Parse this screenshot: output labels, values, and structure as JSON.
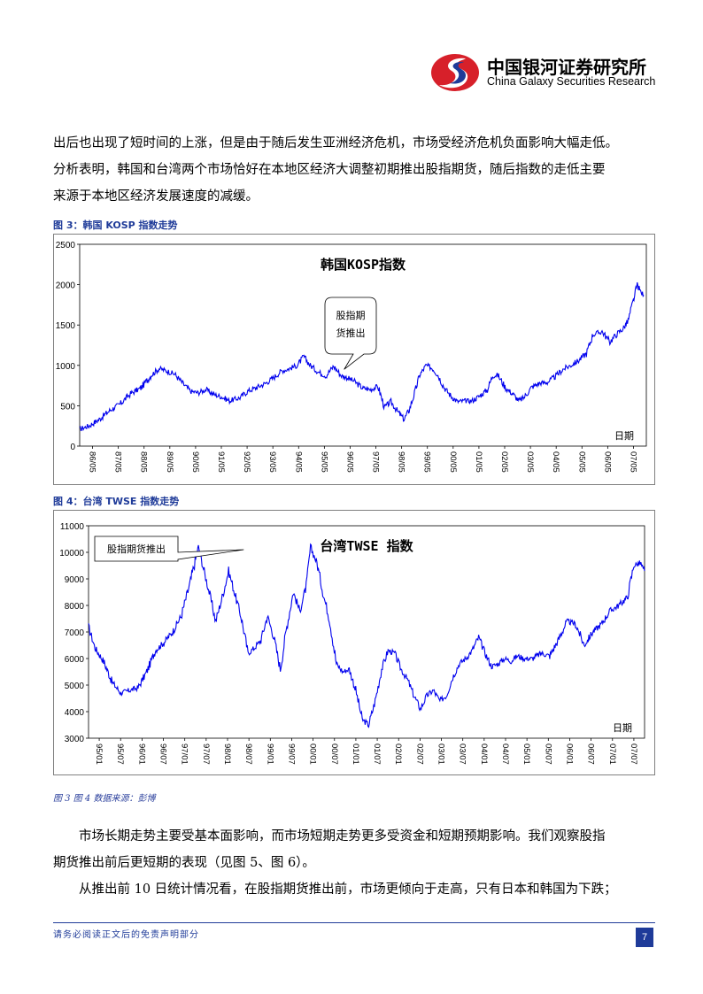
{
  "header": {
    "logo_cn": "中国银河证券研究所",
    "logo_en": "China Galaxy Securities Research",
    "logo_colors": {
      "red": "#d7202a",
      "blue": "#1f3b99"
    }
  },
  "paragraphs_top": [
    "出后也出现了短时间的上涨，但是由于随后发生亚洲经济危机，市场受经济危机负面影响大幅走低。",
    "分析表明，韩国和台湾两个市场恰好在本地区经济大调整初期推出股指期货，随后指数的走低主要",
    "来源于本地区经济发展速度的减缓。"
  ],
  "figure3": {
    "caption": "图 3：韩国 KOSP 指数走势",
    "chart_data": {
      "type": "line",
      "title": "韩国KOSP指数",
      "xlabel": "日期",
      "ylabel": "",
      "ylim": [
        0,
        2500
      ],
      "yticks": [
        "0",
        "500",
        "1000",
        "1500",
        "2000",
        "2500"
      ],
      "xticks": [
        "86/05",
        "87/05",
        "88/05",
        "89/05",
        "90/05",
        "91/05",
        "92/05",
        "93/05",
        "94/05",
        "95/05",
        "96/05",
        "97/05",
        "98/05",
        "99/05",
        "00/05",
        "01/05",
        "02/05",
        "03/05",
        "04/05",
        "05/05",
        "06/05",
        "07/05"
      ],
      "x_range": [
        1986.25,
        2008.0
      ],
      "annotation": {
        "text_lines": [
          "股指期",
          "货推出"
        ],
        "x": 1996.4,
        "y": 950
      },
      "series": [
        {
          "color": "#0000ee",
          "x": [
            1986.25,
            1986.6,
            1987.0,
            1987.4,
            1987.8,
            1988.2,
            1988.6,
            1989.0,
            1989.3,
            1989.6,
            1989.9,
            1990.2,
            1990.5,
            1990.8,
            1991.1,
            1991.4,
            1991.7,
            1992.0,
            1992.4,
            1992.7,
            1993.0,
            1993.4,
            1993.7,
            1994.0,
            1994.3,
            1994.6,
            1994.85,
            1995.1,
            1995.4,
            1995.7,
            1996.0,
            1996.3,
            1996.5,
            1996.8,
            1997.1,
            1997.4,
            1997.7,
            1997.95,
            1998.2,
            1998.45,
            1998.7,
            1998.9,
            1999.1,
            1999.3,
            1999.55,
            1999.8,
            2000.0,
            2000.25,
            2000.5,
            2000.75,
            2001.0,
            2001.3,
            2001.6,
            2001.9,
            2002.1,
            2002.3,
            2002.6,
            2002.9,
            2003.1,
            2003.3,
            2003.6,
            2003.9,
            2004.2,
            2004.5,
            2004.8,
            2005.1,
            2005.4,
            2005.7,
            2005.95,
            2006.3,
            2006.6,
            2006.9,
            2007.1,
            2007.3,
            2007.5,
            2007.65,
            2007.8,
            2007.9
          ],
          "y": [
            210,
            250,
            330,
            440,
            520,
            650,
            720,
            880,
            960,
            930,
            890,
            780,
            680,
            660,
            700,
            640,
            610,
            560,
            600,
            680,
            720,
            780,
            850,
            930,
            960,
            1000,
            1110,
            1000,
            920,
            870,
            990,
            870,
            850,
            800,
            720,
            700,
            740,
            480,
            550,
            430,
            330,
            450,
            650,
            880,
            1000,
            960,
            880,
            720,
            620,
            550,
            560,
            560,
            620,
            700,
            870,
            880,
            720,
            640,
            560,
            600,
            730,
            780,
            790,
            860,
            950,
            1000,
            1060,
            1150,
            1380,
            1420,
            1290,
            1400,
            1450,
            1550,
            1800,
            2000,
            1900,
            1870
          ]
        }
      ]
    }
  },
  "figure4": {
    "caption": "图 4：台湾 TWSE 指数走势",
    "chart_data": {
      "type": "line",
      "title": "台湾TWSE 指数",
      "xlabel": "日期",
      "ylabel": "",
      "ylim": [
        3000,
        11000
      ],
      "yticks": [
        "3000",
        "4000",
        "5000",
        "6000",
        "7000",
        "8000",
        "9000",
        "10000",
        "11000"
      ],
      "xticks": [
        "95/01",
        "95/07",
        "96/01",
        "96/07",
        "97/01",
        "97/07",
        "98/01",
        "98/07",
        "99/01",
        "99/07",
        "00/01",
        "00/07",
        "01/01",
        "01/07",
        "02/01",
        "02/07",
        "03/01",
        "03/07",
        "04/01",
        "04/07",
        "05/01",
        "05/07",
        "06/01",
        "06/07",
        "07/01",
        "07/07"
      ],
      "x_range": [
        1995.0,
        2007.9
      ],
      "annotation": {
        "text_lines": [
          "股指期货推出"
        ],
        "x": 1998.6,
        "y": 10100
      },
      "series": [
        {
          "color": "#0000ee",
          "x": [
            1995.0,
            1995.15,
            1995.35,
            1995.55,
            1995.75,
            1995.95,
            1996.15,
            1996.35,
            1996.55,
            1996.75,
            1996.95,
            1997.15,
            1997.35,
            1997.55,
            1997.65,
            1997.8,
            1997.95,
            1998.1,
            1998.25,
            1998.4,
            1998.55,
            1998.7,
            1998.85,
            1999.0,
            1999.15,
            1999.3,
            1999.45,
            1999.6,
            1999.75,
            1999.9,
            2000.05,
            2000.15,
            2000.3,
            2000.45,
            2000.6,
            2000.75,
            2000.9,
            2001.05,
            2001.2,
            2001.35,
            2001.5,
            2001.65,
            2001.8,
            2001.95,
            2002.1,
            2002.25,
            2002.4,
            2002.55,
            2002.7,
            2002.85,
            2003.0,
            2003.15,
            2003.3,
            2003.45,
            2003.6,
            2003.75,
            2003.9,
            2004.05,
            2004.2,
            2004.35,
            2004.5,
            2004.65,
            2004.8,
            2004.95,
            2005.1,
            2005.3,
            2005.5,
            2005.7,
            2005.9,
            2006.1,
            2006.3,
            2006.5,
            2006.7,
            2006.9,
            2007.1,
            2007.3,
            2007.5,
            2007.65,
            2007.8,
            2007.9
          ],
          "y": [
            7200,
            6400,
            5900,
            5100,
            4700,
            4800,
            4900,
            5500,
            6300,
            6600,
            7000,
            7600,
            8800,
            10200,
            9500,
            8500,
            7400,
            8300,
            9300,
            8400,
            7500,
            6200,
            6400,
            6700,
            7600,
            6800,
            5600,
            7200,
            8500,
            7800,
            8700,
            10200,
            9600,
            8400,
            7400,
            5800,
            5500,
            5600,
            4800,
            3700,
            3500,
            4400,
            5600,
            6300,
            6200,
            5600,
            5200,
            4600,
            4100,
            4600,
            4800,
            4400,
            4600,
            5300,
            5800,
            6000,
            6300,
            6800,
            6200,
            5700,
            5800,
            6000,
            5900,
            6100,
            6000,
            6000,
            6200,
            6100,
            6700,
            7400,
            7300,
            6500,
            7000,
            7300,
            7800,
            8000,
            8300,
            9500,
            9600,
            9300
          ]
        }
      ]
    }
  },
  "source": "图 3 图 4 数据来源：彭博",
  "paragraphs_bottom": [
    "市场长期走势主要受基本面影响，而市场短期走势更多受资金和短期预期影响。我们观察股指",
    "期货推出前后更短期的表现（见图 5、图 6）。",
    "从推出前 10 日统计情况看，在股指期货推出前，市场更倾向于走高，只有日本和韩国为下跌；"
  ],
  "footer": {
    "disclaimer": "请务必阅读正文后的免责声明部分",
    "page_number": "7"
  }
}
